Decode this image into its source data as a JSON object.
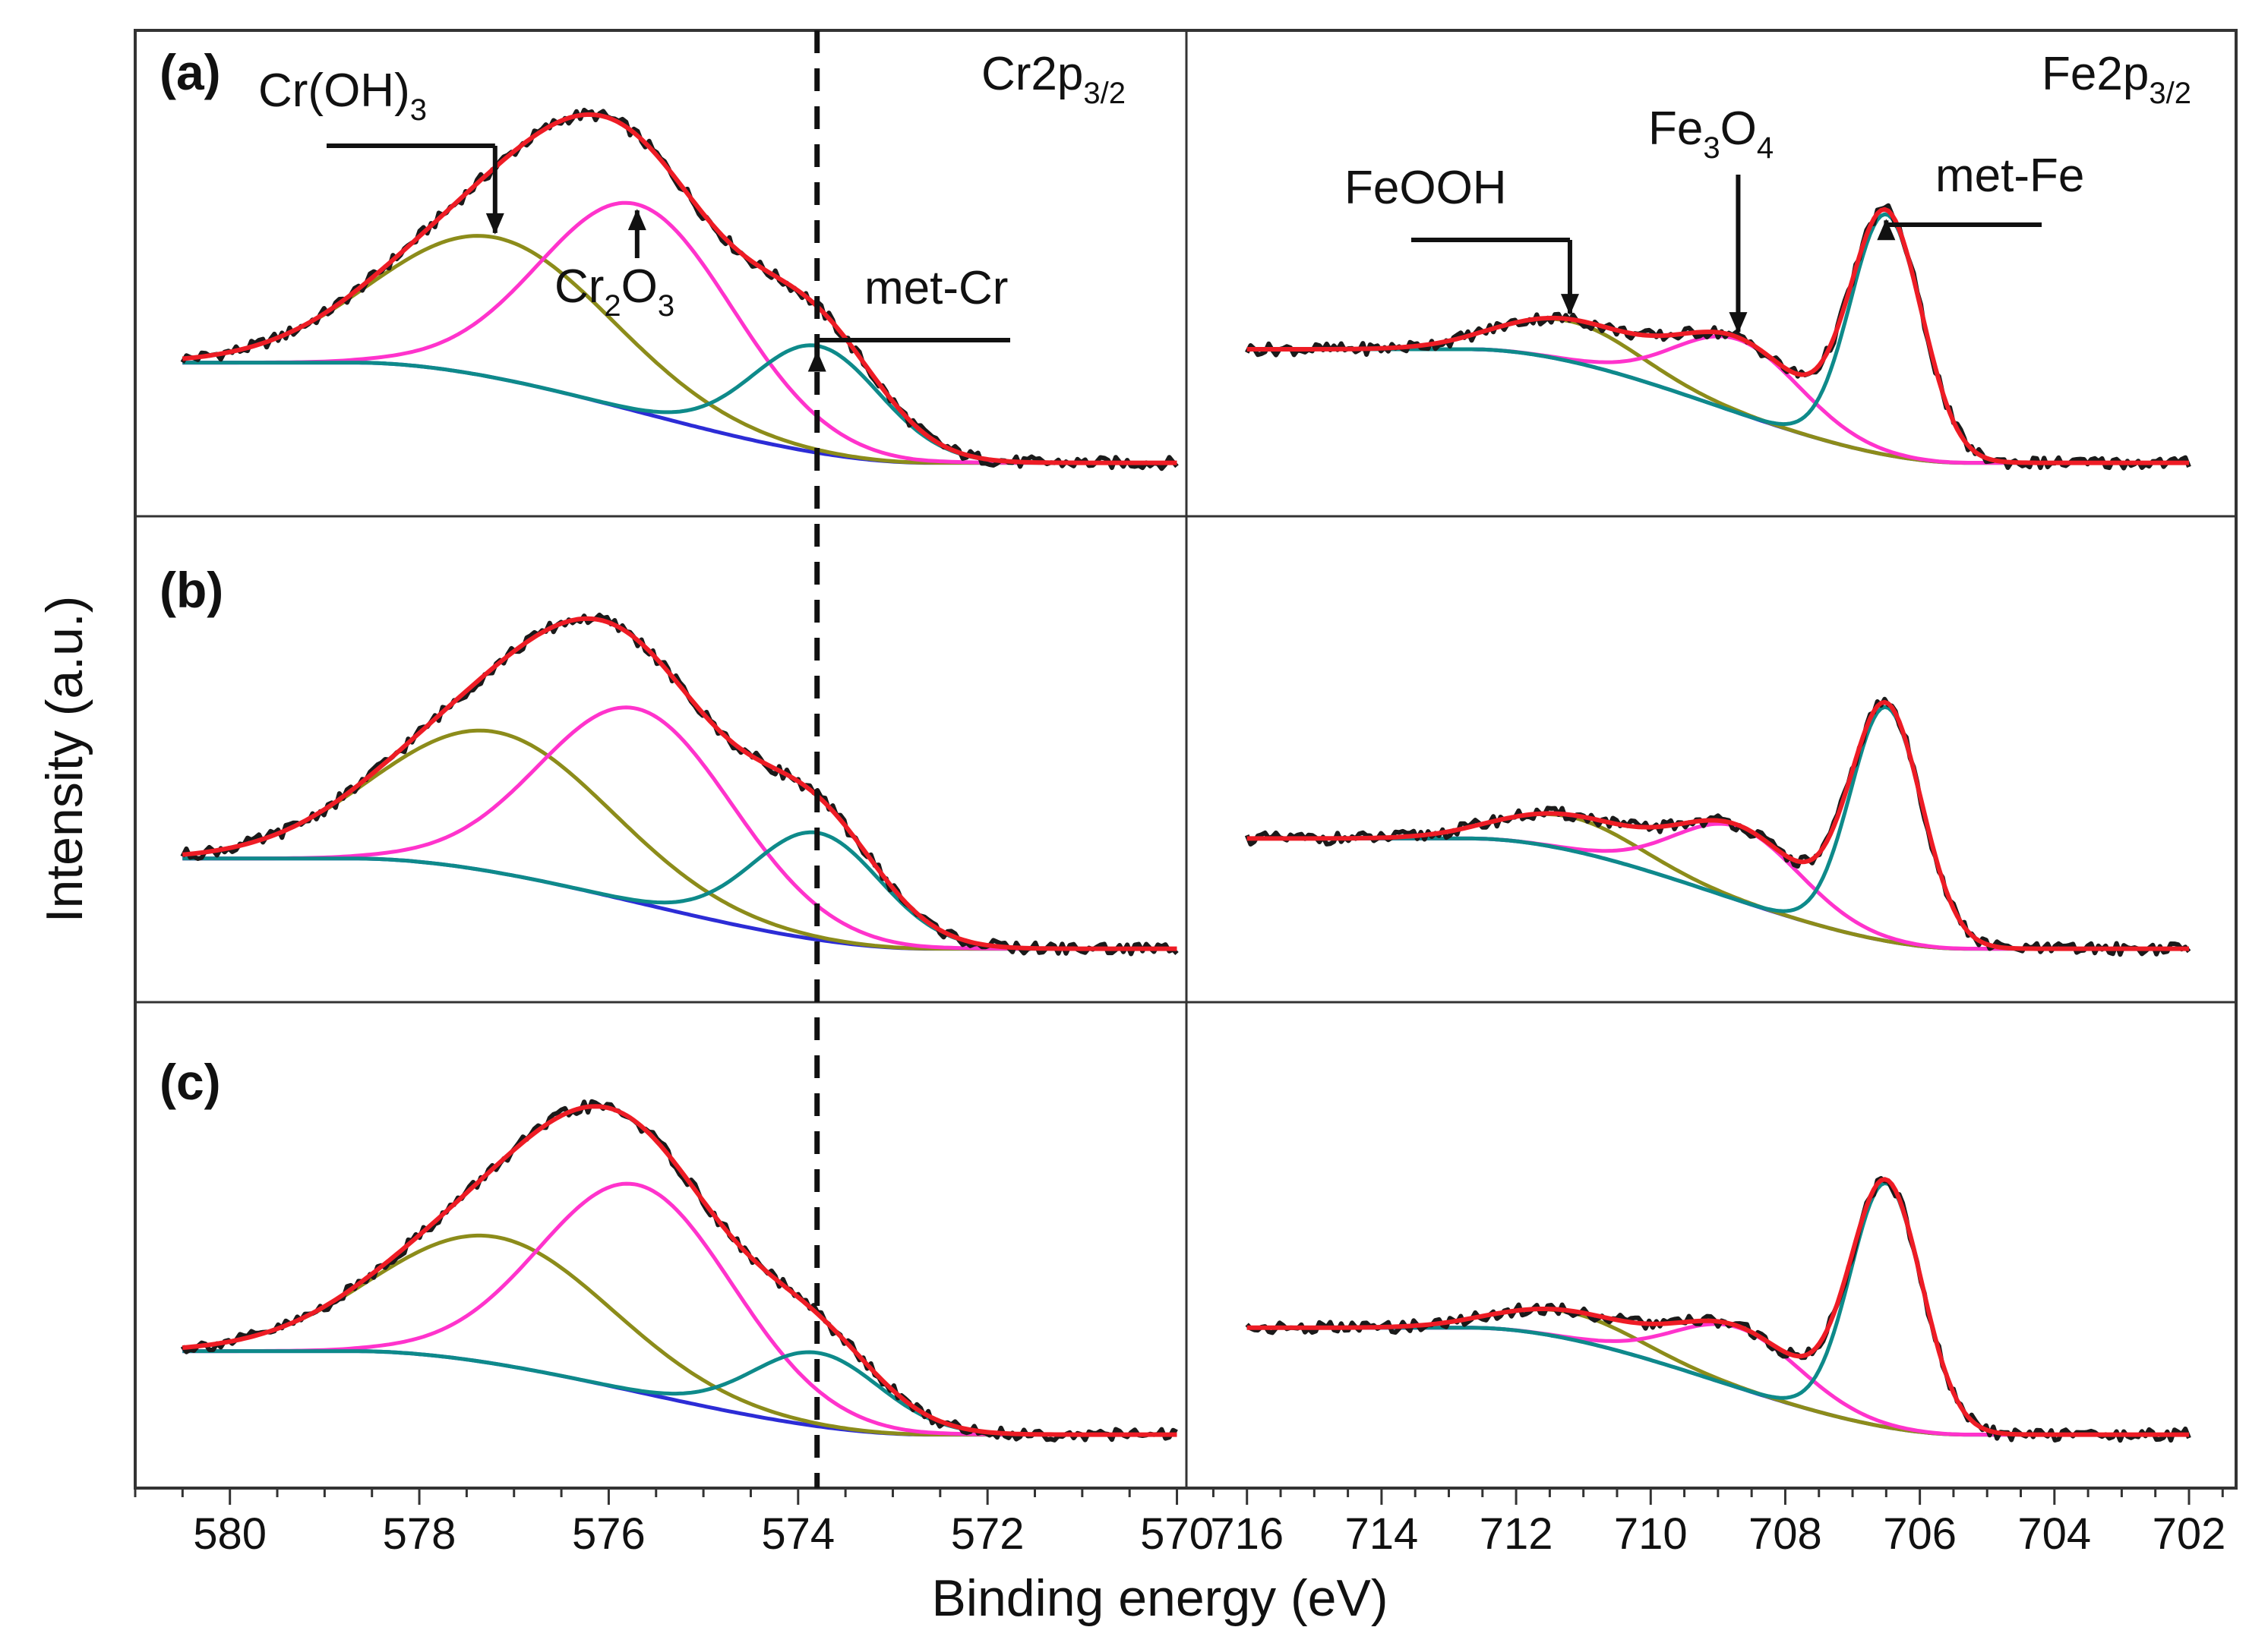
{
  "chart_data": {
    "type": "line",
    "title": "",
    "ylabel": "Intensity (a.u.)",
    "xlabel": "Binding energy (eV)",
    "series_colors": {
      "raw": "#1a1a1a",
      "fit_envelope": "#ee1c25",
      "cr_oh3": "#8c8c1a",
      "cr2o3": "#ff33cc",
      "met_cr": "#0e8a8a",
      "background": "#2c2cd6",
      "feooh": "#8c8c1a",
      "fe3o4": "#ff33cc",
      "met_fe": "#0e8a8a"
    },
    "columns": [
      {
        "element": "Cr",
        "spectrum_label": {
          "base": "Cr2p",
          "sub": "3/2"
        },
        "xlim": [
          581,
          569.9
        ],
        "x_ticks": [
          "580",
          "578",
          "576",
          "574",
          "572",
          "570"
        ],
        "start_x": 580.5,
        "end_x": 570,
        "components": [
          {
            "name": "Cr(OH)3",
            "label_base": "Cr(OH)",
            "label_sub": "3",
            "center": 577.2,
            "fwhm": 2.9
          },
          {
            "name": "Cr2O3",
            "label_parts": [
              "Cr",
              "2",
              "O",
              "3"
            ],
            "center": 575.7,
            "fwhm": 2.4
          },
          {
            "name": "met-Cr",
            "label": "met-Cr",
            "center": 573.8,
            "fwhm": 1.6
          }
        ],
        "reference_line_x": 573.8
      },
      {
        "element": "Fe",
        "spectrum_label": {
          "base": "Fe2p",
          "sub": "3/2"
        },
        "xlim": [
          716.9,
          701.3
        ],
        "x_ticks": [
          "716",
          "714",
          "712",
          "710",
          "708",
          "706",
          "704",
          "702"
        ],
        "start_x": 716,
        "end_x": 702,
        "components": [
          {
            "name": "FeOOH",
            "label": "FeOOH",
            "center": 711.2,
            "fwhm": 2.4
          },
          {
            "name": "Fe3O4",
            "label_parts": [
              "Fe",
              "3",
              "O",
              "4"
            ],
            "center": 708.7,
            "fwhm": 2.2
          },
          {
            "name": "met-Fe",
            "label": "met-Fe",
            "center": 706.5,
            "fwhm": 1.25
          }
        ]
      }
    ],
    "panels": [
      {
        "label": "(a)",
        "cr": {
          "amplitudes": [
            0.42,
            0.62,
            0.32
          ],
          "baseline_low": 0.0,
          "baseline_high": 0.3
        },
        "fe": {
          "amplitudes": [
            0.12,
            0.22,
            0.72
          ],
          "baseline_low": 0.0,
          "baseline_high": 0.34
        }
      },
      {
        "label": "(b)",
        "cr": {
          "amplitudes": [
            0.42,
            0.58,
            0.32
          ],
          "baseline_low": 0.0,
          "baseline_high": 0.27
        },
        "fe": {
          "amplitudes": [
            0.1,
            0.22,
            0.7
          ],
          "baseline_low": 0.0,
          "baseline_high": 0.33
        }
      },
      {
        "label": "(c)",
        "cr": {
          "amplitudes": [
            0.38,
            0.62,
            0.22
          ],
          "baseline_low": 0.0,
          "baseline_high": 0.25
        },
        "fe": {
          "amplitudes": [
            0.08,
            0.18,
            0.73
          ],
          "baseline_low": 0.0,
          "baseline_high": 0.32
        }
      }
    ],
    "annotations": {
      "cr_oh3": "Cr(OH)3",
      "cr2o3": "Cr2O3",
      "met_cr": "met-Cr",
      "feooh": "FeOOH",
      "fe3o4": "Fe3O4",
      "met_fe": "met-Fe"
    }
  }
}
